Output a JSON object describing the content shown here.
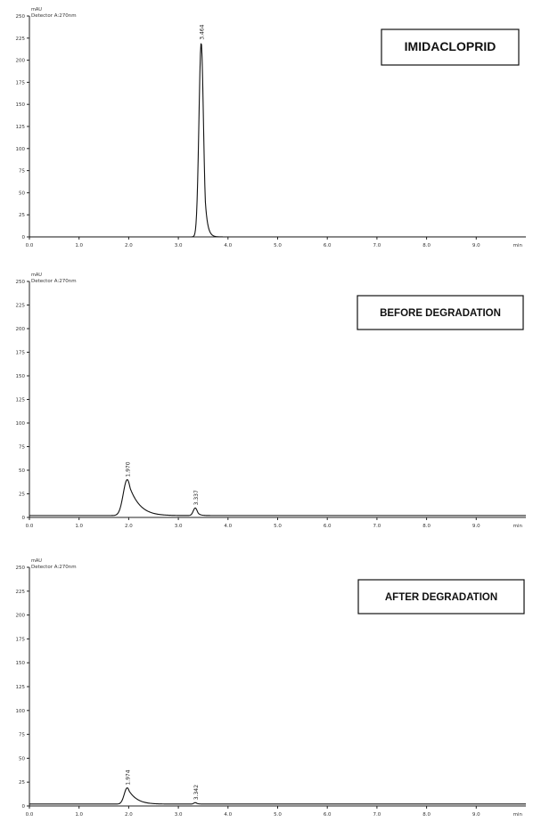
{
  "chart_data": [
    {
      "type": "line",
      "unit_label": "mAU",
      "detector_label": "Detector A:270nm",
      "x_unit_label": "min",
      "box_label": "IMIDACLOPRID",
      "xlim": [
        0,
        10
      ],
      "ylim": [
        0,
        250
      ],
      "x_ticks": [
        "0.0",
        "1.0",
        "2.0",
        "3.0",
        "4.0",
        "5.0",
        "6.0",
        "7.0",
        "8.0",
        "9.0"
      ],
      "y_ticks": [
        "0",
        "25",
        "50",
        "75",
        "100",
        "125",
        "150",
        "175",
        "200",
        "225",
        "250"
      ],
      "baseline": 0,
      "peaks": [
        {
          "rt_label": "3.464",
          "rt": 3.46,
          "height": 220,
          "sigma": 0.045,
          "tail": 0.05,
          "rise": 1.0
        }
      ]
    },
    {
      "type": "line",
      "unit_label": "mAU",
      "detector_label": "Detector A:270nm",
      "x_unit_label": "min",
      "box_label": "BEFORE DEGRADATION",
      "xlim": [
        0,
        10
      ],
      "ylim": [
        0,
        250
      ],
      "x_ticks": [
        "0.0",
        "1.0",
        "2.0",
        "3.0",
        "4.0",
        "5.0",
        "6.0",
        "7.0",
        "8.0",
        "9.0"
      ],
      "y_ticks": [
        "0",
        "25",
        "50",
        "75",
        "100",
        "125",
        "150",
        "175",
        "200",
        "225",
        "250"
      ],
      "baseline": 2,
      "peaks": [
        {
          "rt_label": "1.970",
          "rt": 1.97,
          "height": 38,
          "sigma": 0.08,
          "tail": 0.22,
          "rise": 1.0
        },
        {
          "rt_label": "3.337",
          "rt": 3.34,
          "height": 8,
          "sigma": 0.04,
          "tail": 0.05,
          "rise": 1.0
        }
      ]
    },
    {
      "type": "line",
      "unit_label": "mAU",
      "detector_label": "Detector A:270nm",
      "x_unit_label": "min",
      "box_label": "AFTER DEGRADATION",
      "xlim": [
        0,
        10
      ],
      "ylim": [
        0,
        250
      ],
      "x_ticks": [
        "0.0",
        "1.0",
        "2.0",
        "3.0",
        "4.0",
        "5.0",
        "6.0",
        "7.0",
        "8.0",
        "9.0"
      ],
      "y_ticks": [
        "0",
        "25",
        "50",
        "75",
        "100",
        "125",
        "150",
        "175",
        "200",
        "225",
        "250"
      ],
      "baseline": 2,
      "peaks": [
        {
          "rt_label": "1.974",
          "rt": 1.97,
          "height": 17,
          "sigma": 0.06,
          "tail": 0.18,
          "rise": 1.0
        },
        {
          "rt_label": "3.342",
          "rt": 3.34,
          "height": 1.5,
          "sigma": 0.03,
          "tail": 0.04,
          "rise": 1.0
        }
      ]
    }
  ]
}
